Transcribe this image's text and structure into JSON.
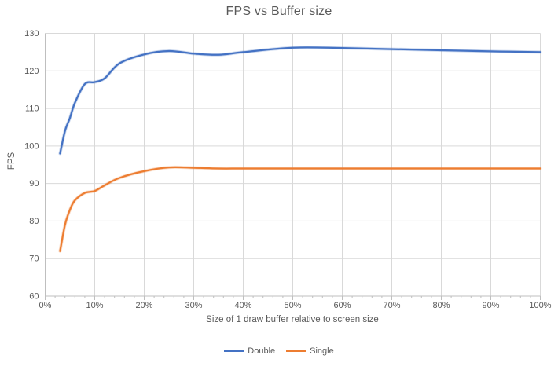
{
  "chart_data": {
    "type": "line",
    "title": "FPS vs Buffer size",
    "xlabel": "Size of 1 draw buffer relative to screen size",
    "ylabel": "FPS",
    "xlim": [
      0,
      100
    ],
    "ylim": [
      60,
      130
    ],
    "x_major_ticks": [
      0,
      10,
      20,
      30,
      40,
      50,
      60,
      70,
      80,
      90,
      100
    ],
    "x_tick_labels": [
      "0%",
      "10%",
      "20%",
      "30%",
      "40%",
      "50%",
      "60%",
      "70%",
      "80%",
      "90%",
      "100%"
    ],
    "x_minor_tick_step": 2,
    "y_ticks": [
      60,
      70,
      80,
      90,
      100,
      110,
      120,
      130
    ],
    "grid": true,
    "legend_position": "bottom",
    "text_color": "#595959",
    "gridline_color": "#D9D9D9",
    "axis_color": "#BFBFBF",
    "x": [
      3,
      4,
      5,
      6,
      8,
      10,
      12,
      15,
      20,
      25,
      30,
      35,
      40,
      50,
      60,
      70,
      80,
      90,
      100
    ],
    "series": [
      {
        "name": "Double",
        "color": "#4472C4",
        "values": [
          98,
          104,
          107.5,
          111.5,
          116.5,
          117,
          118,
          122,
          124.4,
          125.3,
          124.6,
          124.3,
          125,
          126.2,
          126.1,
          125.8,
          125.5,
          125.2,
          125
        ]
      },
      {
        "name": "Single",
        "color": "#ED7D31",
        "values": [
          72,
          79,
          83,
          85.5,
          87.5,
          88,
          89.5,
          91.5,
          93.3,
          94.3,
          94.2,
          94,
          94,
          94,
          94,
          94,
          94,
          94,
          94
        ]
      }
    ]
  }
}
